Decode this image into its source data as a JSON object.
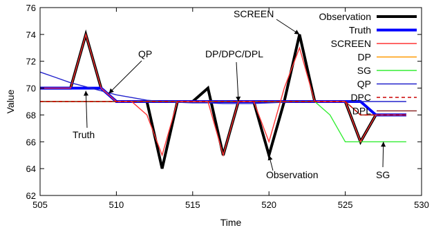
{
  "chart_data": {
    "type": "line",
    "title": "",
    "xlabel": "Time",
    "ylabel": "Value",
    "xlim": [
      505,
      530
    ],
    "ylim": [
      62,
      76
    ],
    "xticks": [
      505,
      510,
      515,
      520,
      525,
      530
    ],
    "yticks": [
      62,
      64,
      66,
      68,
      70,
      72,
      74,
      76
    ],
    "grid": false,
    "legend_position": "top-right",
    "series": [
      {
        "name": "Observation",
        "color": "#000000",
        "dash": "solid",
        "width_class": "thick",
        "x": [
          505,
          506,
          507,
          508,
          509,
          510,
          511,
          512,
          513,
          514,
          515,
          516,
          517,
          518,
          519,
          520,
          521,
          522,
          523,
          524,
          525,
          526,
          527,
          528,
          529
        ],
        "y": [
          70,
          70,
          70,
          74,
          70,
          69,
          69,
          69,
          64,
          69,
          69,
          70,
          65,
          69,
          69,
          65,
          69,
          74,
          69,
          69,
          69,
          66,
          68,
          68,
          68
        ]
      },
      {
        "name": "Truth",
        "color": "#0000ff",
        "dash": "solid",
        "width_class": "thick",
        "x": [
          505,
          506,
          507,
          508,
          509,
          510,
          511,
          512,
          513,
          514,
          515,
          516,
          517,
          518,
          519,
          520,
          521,
          522,
          523,
          524,
          525,
          526,
          527,
          528,
          529
        ],
        "y": [
          70,
          70,
          70,
          70,
          70,
          69,
          69,
          69,
          69,
          69,
          69,
          69,
          69,
          69,
          69,
          69,
          69,
          69,
          69,
          69,
          69,
          69,
          68,
          68,
          68
        ]
      },
      {
        "name": "SCREEN",
        "color": "#ff3333",
        "dash": "solid",
        "width_class": "normal",
        "x": [
          505,
          506,
          507,
          508,
          509,
          510,
          511,
          512,
          513,
          514,
          515,
          516,
          517,
          518,
          519,
          520,
          521,
          522,
          523,
          524,
          525,
          526,
          527,
          528,
          529
        ],
        "y": [
          70,
          70,
          70,
          74,
          70,
          69,
          69,
          68,
          65,
          69,
          69,
          69,
          65,
          69,
          69,
          66,
          70,
          73,
          69,
          69,
          69,
          66,
          68,
          68,
          68
        ]
      },
      {
        "name": "DP",
        "color": "#ff9900",
        "dash": "solid",
        "width_class": "normal",
        "x": [
          505,
          510,
          515,
          520,
          525,
          526,
          527,
          528,
          529
        ],
        "y": [
          69,
          69,
          69,
          69,
          69,
          68,
          68,
          68,
          68
        ]
      },
      {
        "name": "SG",
        "color": "#33ee33",
        "dash": "solid",
        "width_class": "normal",
        "x": [
          505,
          510,
          515,
          520,
          523,
          524,
          525,
          526,
          527,
          528,
          529
        ],
        "y": [
          69,
          69,
          69,
          69,
          69,
          68,
          66,
          66,
          66,
          66,
          66
        ]
      },
      {
        "name": "QP",
        "color": "#2222cc",
        "dash": "solid",
        "width_class": "normal",
        "x": [
          505,
          506,
          507,
          508,
          509,
          510,
          511,
          512,
          513,
          514,
          515,
          516,
          517,
          518,
          519,
          520,
          521,
          522,
          523,
          524,
          525,
          526,
          527,
          528,
          529
        ],
        "y": [
          71.2,
          70.8,
          70.4,
          70.1,
          69.8,
          69.5,
          69.3,
          69.1,
          69.0,
          68.95,
          68.9,
          68.9,
          68.85,
          68.85,
          68.85,
          68.9,
          68.95,
          69.0,
          69.0,
          69.0,
          69.0,
          69.0,
          69.0,
          69.0,
          69.0
        ]
      },
      {
        "name": "DPC",
        "color": "#cc0000",
        "dash": "dashed",
        "width_class": "normal",
        "x": [
          505,
          510,
          515,
          520,
          525,
          526,
          527,
          528,
          529
        ],
        "y": [
          69,
          69,
          69,
          69,
          69,
          68,
          68,
          68,
          68
        ]
      },
      {
        "name": "DPL",
        "color": "#8c2a2a",
        "dash": "solid",
        "width_class": "normal",
        "x": [
          505,
          510,
          515,
          520,
          525,
          526,
          527,
          528,
          529
        ],
        "y": [
          69,
          69,
          69,
          69,
          69,
          68,
          68,
          68,
          68
        ]
      }
    ],
    "annotations": [
      {
        "text": "SCREEN",
        "point": [
          522,
          74
        ]
      },
      {
        "text": "QP",
        "point": [
          509.5,
          69.6
        ]
      },
      {
        "text": "DP/DPC/DPL",
        "point": [
          518,
          69
        ]
      },
      {
        "text": "Truth",
        "point": [
          508,
          69.8
        ]
      },
      {
        "text": "Observation",
        "point": [
          520,
          65
        ]
      },
      {
        "text": "SG",
        "point": [
          527.5,
          66
        ]
      }
    ]
  }
}
